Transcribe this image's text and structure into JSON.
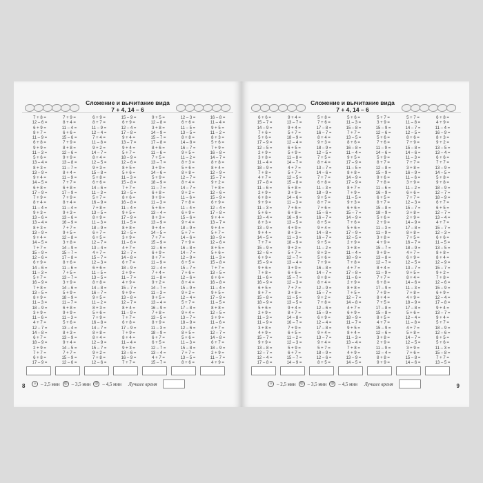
{
  "title": "Сложение и вычитание вида",
  "subtitle": "7 + 4, 14 – 6",
  "footer": {
    "face_good": "☺",
    "time_good": "– 2,5 мин",
    "face_mid": "☹",
    "time_mid": "– 3,5 мин",
    "face_bad": "☹",
    "time_bad": "– 4,5 мин",
    "best_time_label": "Лучшее время"
  },
  "left_page": {
    "page_number": "8",
    "columns": [
      [
        "7 + 8 =",
        "12 – 6 =",
        "6 + 9 =",
        "8 + 7 =",
        "11 – 9 =",
        "6 + 8 =",
        "9 + 9 =",
        "11 – 3 =",
        "5 + 6 =",
        "13 – 4 =",
        "8 + 3 =",
        "13 – 9 =",
        "9 + 4 =",
        "14 – 5 =",
        "6 + 8 =",
        "17 – 9 =",
        "7 + 9 =",
        "8 + 4 =",
        "11 – 4 =",
        "9 + 3 =",
        "13 – 6 =",
        "13 – 4 =",
        "8 + 3 =",
        "13 – 9 =",
        "9 + 4 =",
        "14 – 5 =",
        "7 + 7 =",
        "15 – 9 =",
        "12 – 6 =",
        "6 + 9 =",
        "14 – 6 =",
        "11 – 3 =",
        "5 + 7 =",
        "16 – 9 =",
        "7 + 8 =",
        "13 – 5 =",
        "8 + 9 =",
        "11 – 3 =",
        "18 – 9 =",
        "3 + 9 =",
        "11 – 6 =",
        "4 + 7 =",
        "12 – 7 =",
        "14 – 8 =",
        "6 + 7 =",
        "18 – 9 =",
        "2 + 9 =",
        "7 + 7 =",
        "6 + 8 =",
        "17 – 9 ="
      ],
      [
        "7 + 9 =",
        "8 + 4 =",
        "11 – 4 =",
        "6 + 6 =",
        "15 – 6 =",
        "7 + 9 =",
        "8 + 8 =",
        "12 – 6 =",
        "9 + 9 =",
        "13 – 8 =",
        "11 – 7 =",
        "8 + 4 =",
        "11 – 9 =",
        "7 + 7 =",
        "6 + 8 =",
        "17 – 9 =",
        "7 + 9 =",
        "8 + 4 =",
        "11 – 4 =",
        "9 + 3 =",
        "13 – 6 =",
        "16 – 9 =",
        "7 + 7 =",
        "9 + 5 =",
        "12 – 8 =",
        "3 + 8 =",
        "14 – 9 =",
        "15 – 7 =",
        "17 – 8 =",
        "8 + 6 =",
        "11 – 6 =",
        "7 + 5 =",
        "13 – 7 =",
        "3 + 9 =",
        "14 – 6 =",
        "5 + 9 =",
        "18 – 9 =",
        "11 – 7 =",
        "6 + 8 =",
        "9 + 9 =",
        "11 – 3 =",
        "5 + 6 =",
        "13 – 4 =",
        "8 + 3 =",
        "13 – 9 =",
        "9 + 4 =",
        "14 – 5 =",
        "7 + 7 =",
        "15 – 9 =",
        "12 – 6 ="
      ],
      [
        "6 + 9 =",
        "8 + 7 =",
        "11 – 9 =",
        "12 – 4 =",
        "7 + 4 =",
        "11 – 8 =",
        "9 + 2 =",
        "14 – 7 =",
        "8 + 4 =",
        "12 – 5 =",
        "9 + 3 =",
        "15 – 8 =",
        "5 + 8 =",
        "6 + 6 =",
        "14 – 6 =",
        "11 – 3 =",
        "5 + 7 =",
        "16 – 9 =",
        "7 + 8 =",
        "13 – 5 =",
        "8 + 9 =",
        "11 – 3 =",
        "18 – 9 =",
        "6 + 7 =",
        "6 + 5 =",
        "12 – 7 =",
        "13 – 4 =",
        "4 + 7 =",
        "15 – 7 =",
        "12 – 3 =",
        "6 + 6 =",
        "11 – 5 =",
        "13 – 5 =",
        "8 + 8 =",
        "14 – 8 =",
        "16 – 7 =",
        "9 + 5 =",
        "11 – 2 =",
        "8 + 3 =",
        "5 + 6 =",
        "7 + 9 =",
        "16 – 8 =",
        "14 – 7 =",
        "8 + 8 =",
        "8 + 4 =",
        "12 – 9 =",
        "15 – 7 =",
        "9 + 2 =",
        "7 + 8 =",
        "12 – 6 ="
      ],
      [
        "15 – 9 =",
        "6 + 9 =",
        "12 – 4 =",
        "17 – 8 =",
        "9 + 4 =",
        "13 – 7 =",
        "9 + 4 =",
        "5 + 7 =",
        "18 – 9 =",
        "12 – 6 =",
        "8 + 5 =",
        "5 + 6 =",
        "11 – 3 =",
        "15 – 8 =",
        "7 + 7 =",
        "13 – 5 =",
        "8 + 6 =",
        "16 – 8 =",
        "11 – 4 =",
        "9 + 5 =",
        "17 – 9 =",
        "11 – 5 =",
        "8 + 8 =",
        "12 – 5 =",
        "3 + 9 =",
        "11 – 6 =",
        "4 + 7 =",
        "12 – 7 =",
        "14 – 8 =",
        "6 + 7 =",
        "18 – 9 =",
        "2 + 9 =",
        "11 – 7 =",
        "4 + 9 =",
        "15 – 7 =",
        "9 + 9 =",
        "13 – 8 =",
        "12 – 7 =",
        "8 + 4 =",
        "11 – 9 =",
        "7 + 7 =",
        "6 + 8 =",
        "17 – 9 =",
        "7 + 9 =",
        "8 + 4 =",
        "11 – 4 =",
        "9 + 3 =",
        "13 – 6 =",
        "16 – 9 =",
        "7 + 7 ="
      ],
      [
        "9 + 5 =",
        "12 – 8 =",
        "3 + 8 =",
        "14 – 9 =",
        "15 – 7 =",
        "17 – 8 =",
        "8 + 6 =",
        "11 – 6 =",
        "7 + 5 =",
        "13 – 7 =",
        "3 + 9 =",
        "14 – 6 =",
        "5 + 9 =",
        "18 – 9 =",
        "11 – 7 =",
        "6 + 8 =",
        "9 + 9 =",
        "11 – 3 =",
        "5 + 6 =",
        "13 – 4 =",
        "8 + 3 =",
        "13 – 9 =",
        "9 + 4 =",
        "14 – 5 =",
        "7 + 7 =",
        "15 – 9 =",
        "12 – 6 =",
        "6 + 9 =",
        "8 + 7 =",
        "11 – 9 =",
        "12 – 4 =",
        "7 + 4 =",
        "11 – 8 =",
        "9 + 2 =",
        "14 – 7 =",
        "11 – 3 =",
        "9 + 5 =",
        "13 – 4 =",
        "16 – 9 =",
        "7 + 8 =",
        "13 – 5 =",
        "8 + 9 =",
        "11 – 3 =",
        "18 – 9 =",
        "6 + 7 =",
        "6 + 5 =",
        "12 – 7 =",
        "13 – 4 =",
        "4 + 7 =",
        "15 – 7 ="
      ],
      [
        "12 – 3 =",
        "6 + 6 =",
        "11 – 5 =",
        "13 – 5 =",
        "8 + 8 =",
        "14 – 8 =",
        "16 – 7 =",
        "9 + 5 =",
        "11 – 2 =",
        "8 + 3 =",
        "5 + 6 =",
        "8 + 8 =",
        "12 – 7 =",
        "8 + 4 =",
        "14 – 7 =",
        "9 + 2 =",
        "11 – 6 =",
        "7 + 8 =",
        "11 – 4 =",
        "6 + 9 =",
        "15 – 6 =",
        "9 + 4 =",
        "18 – 9 =",
        "5 + 7 =",
        "14 – 6 =",
        "7 + 9 =",
        "16 – 8 =",
        "14 – 7 =",
        "12 – 9 =",
        "6 + 5 =",
        "15 – 7 =",
        "7 + 6 =",
        "12 – 6 =",
        "8 + 4 =",
        "15 – 9 =",
        "9 + 2 =",
        "12 – 4 =",
        "5 + 7 =",
        "17 – 8 =",
        "9 + 4 =",
        "13 – 7 =",
        "18 – 9 =",
        "12 – 6 =",
        "8 + 5 =",
        "5 + 6 =",
        "11 – 3 =",
        "15 – 8 =",
        "7 + 7 =",
        "13 – 5 =",
        "8 + 6 ="
      ],
      [
        "16 – 8 =",
        "11 – 4 =",
        "9 + 5 =",
        "11 – 2 =",
        "8 + 3 =",
        "5 + 6 =",
        "7 + 9 =",
        "16 – 8 =",
        "14 – 7 =",
        "8 + 8 =",
        "8 + 4 =",
        "12 – 9 =",
        "15 – 7 =",
        "9 + 2 =",
        "7 + 8 =",
        "12 – 6 =",
        "15 – 9 =",
        "6 + 9 =",
        "12 – 4 =",
        "17 – 8 =",
        "9 + 4 =",
        "13 – 7 =",
        "9 + 4 =",
        "5 + 7 =",
        "18 – 9 =",
        "12 – 6 =",
        "8 + 5 =",
        "5 + 6 =",
        "11 – 3 =",
        "15 – 8 =",
        "7 + 7 =",
        "13 – 5 =",
        "8 + 6 =",
        "16 – 8 =",
        "11 – 4 =",
        "9 + 5 =",
        "17 – 9 =",
        "11 – 5 =",
        "8 + 8 =",
        "12 – 5 =",
        "3 + 9 =",
        "11 – 6 =",
        "4 + 7 =",
        "12 – 7 =",
        "14 – 8 =",
        "6 + 7 =",
        "18 – 9 =",
        "2 + 9 =",
        "11 – 7 =",
        "4 + 9 ="
      ]
    ]
  },
  "right_page": {
    "page_number": "9",
    "columns": [
      [
        "6 + 6 =",
        "15 – 7 =",
        "14 – 9 =",
        "7 + 6 =",
        "5 + 6 =",
        "17 – 9 =",
        "12 – 5 =",
        "2 + 9 =",
        "3 + 8 =",
        "11 – 4 =",
        "18 – 9 =",
        "7 + 8 =",
        "4 + 7 =",
        "17 – 8 =",
        "11 – 6 =",
        "2 + 9 =",
        "6 + 8 =",
        "9 + 9 =",
        "11 – 3 =",
        "5 + 6 =",
        "13 – 4 =",
        "8 + 3 =",
        "13 – 9 =",
        "9 + 4 =",
        "14 – 5 =",
        "7 + 7 =",
        "15 – 9 =",
        "12 – 6 =",
        "6 + 9 =",
        "15 – 9 =",
        "9 + 6 =",
        "7 + 8 =",
        "11 – 6 =",
        "16 – 9 =",
        "6 + 5 =",
        "8 + 7 =",
        "15 – 8 =",
        "18 – 9 =",
        "5 + 6 =",
        "2 + 9 =",
        "11 – 3 =",
        "11 – 9 =",
        "3 + 8 =",
        "4 + 9 =",
        "15 – 7 =",
        "9 + 9 =",
        "13 – 8 =",
        "12 – 7 =",
        "12 – 4 =",
        "17 – 8 ="
      ],
      [
        "9 + 4 =",
        "13 – 7 =",
        "9 + 4 =",
        "5 + 7 =",
        "18 – 9 =",
        "12 – 4 =",
        "6 + 5 =",
        "5 + 9 =",
        "11 – 8 =",
        "14 – 7 =",
        "4 + 7 =",
        "5 + 7 =",
        "12 – 5 =",
        "15 – 8 =",
        "5 + 8 =",
        "3 + 9 =",
        "14 – 6 =",
        "11 – 3 =",
        "7 + 6 =",
        "6 + 8 =",
        "16 – 9 =",
        "13 – 5 =",
        "4 + 9 =",
        "8 + 3 =",
        "11 – 3 =",
        "18 – 9 =",
        "9 + 2 =",
        "5 + 7 =",
        "12 – 7 =",
        "13 – 4 =",
        "3 + 9 =",
        "6 + 6 =",
        "15 – 7 =",
        "12 – 3 =",
        "7 + 7 =",
        "3 + 8 =",
        "11 – 5 =",
        "13 – 5 =",
        "9 + 4 =",
        "8 + 7 =",
        "14 – 8 =",
        "16 – 7 =",
        "7 + 9 =",
        "6 + 5 =",
        "11 – 2 =",
        "12 – 3 =",
        "5 + 9 =",
        "6 + 7 =",
        "15 – 7 =",
        "14 – 9 ="
      ],
      [
        "5 + 8 =",
        "7 + 6 =",
        "17 – 8 =",
        "16 – 7 =",
        "8 + 4 =",
        "9 + 3 =",
        "18 – 9 =",
        "12 – 5 =",
        "7 + 5 =",
        "8 + 4 =",
        "13 – 7 =",
        "14 – 6 =",
        "7 + 7 =",
        "6 + 8 =",
        "11 – 3 =",
        "18 – 9 =",
        "9 + 5 =",
        "8 + 7 =",
        "7 + 6 =",
        "15 – 6 =",
        "16 – 7 =",
        "8 + 5 =",
        "9 + 4 =",
        "14 – 8 =",
        "16 – 7 =",
        "9 + 5 =",
        "11 – 2 =",
        "8 + 3 =",
        "5 + 6 =",
        "7 + 9 =",
        "16 – 8 =",
        "14 – 7 =",
        "8 + 8 =",
        "8 + 4 =",
        "12 – 9 =",
        "15 – 7 =",
        "9 + 2 =",
        "7 + 8 =",
        "12 – 6 =",
        "15 – 9 =",
        "6 + 9 =",
        "12 – 4 =",
        "17 – 8 =",
        "9 + 4 =",
        "13 – 7 =",
        "9 + 4 =",
        "5 + 7 =",
        "18 – 9 =",
        "12 – 6 =",
        "8 + 5 ="
      ],
      [
        "5 + 6 =",
        "11 – 3 =",
        "15 – 8 =",
        "7 + 7 =",
        "13 – 5 =",
        "8 + 6 =",
        "16 – 8 =",
        "11 – 4 =",
        "9 + 5 =",
        "17 – 9 =",
        "11 – 5 =",
        "8 + 8 =",
        "14 – 9 =",
        "17 – 9 =",
        "8 + 7 =",
        "7 + 9 =",
        "11 – 5 =",
        "9 + 3 =",
        "6 + 6 =",
        "15 – 7 =",
        "14 – 9 =",
        "7 + 6 =",
        "5 + 6 =",
        "17 – 9 =",
        "12 – 5 =",
        "2 + 9 =",
        "3 + 8 =",
        "11 – 4 =",
        "18 – 9 =",
        "7 + 8 =",
        "4 + 7 =",
        "17 – 8 =",
        "11 – 6 =",
        "2 + 9 =",
        "8 + 8 =",
        "7 + 5 =",
        "12 – 7 =",
        "14 – 8 =",
        "4 + 7 =",
        "6 + 9 =",
        "18 – 9 =",
        "11 – 7 =",
        "9 + 5 =",
        "8 + 4 =",
        "11 – 3 =",
        "13 – 4 =",
        "7 + 8 =",
        "4 + 9 =",
        "13 – 9 =",
        "14 – 5 ="
      ],
      [
        "5 + 7 =",
        "3 + 9 =",
        "15 – 9 =",
        "12 – 6 =",
        "5 + 6 =",
        "7 + 6 =",
        "11 – 9 =",
        "14 – 6 =",
        "5 + 9 =",
        "8 + 7 =",
        "12 – 8 =",
        "15 – 9 =",
        "9 + 6 =",
        "7 + 8 =",
        "11 – 6 =",
        "16 – 9 =",
        "6 + 5 =",
        "8 + 7 =",
        "15 – 8 =",
        "18 – 9 =",
        "5 + 6 =",
        "2 + 9 =",
        "11 – 3 =",
        "11 – 9 =",
        "3 + 8 =",
        "4 + 9 =",
        "15 – 7 =",
        "9 + 9 =",
        "13 – 8 =",
        "12 – 7 =",
        "8 + 4 =",
        "11 – 9 =",
        "7 + 7 =",
        "6 + 8 =",
        "17 – 9 =",
        "7 + 9 =",
        "8 + 4 =",
        "7 + 5 =",
        "17 – 8 =",
        "15 – 8 =",
        "8 + 5 =",
        "4 + 7 =",
        "15 – 9 =",
        "12 – 6 =",
        "3 + 8 =",
        "2 + 9 =",
        "11 – 9 =",
        "12 – 4 =",
        "8 + 8 =",
        "9 + 9 ="
      ],
      [
        "5 + 7 =",
        "11 – 8 =",
        "14 – 7 =",
        "12 – 5 =",
        "8 + 6 =",
        "7 + 9 =",
        "15 – 8 =",
        "14 – 6 =",
        "11 – 3 =",
        "7 + 7 =",
        "3 + 8 =",
        "16 – 9 =",
        "11 – 6 =",
        "3 + 9 =",
        "11 – 2 =",
        "6 + 6 =",
        "7 + 7 =",
        "12 – 3 =",
        "15 – 7 =",
        "3 + 8 =",
        "2 + 9 =",
        "14 – 9 =",
        "17 – 8 =",
        "8 + 8 =",
        "7 + 5 =",
        "16 – 7 =",
        "18 – 9 =",
        "4 + 7 =",
        "6 + 9 =",
        "12 – 5 =",
        "13 – 7 =",
        "9 + 5 =",
        "8 + 4 =",
        "14 – 6 =",
        "11 – 3 =",
        "7 + 8 =",
        "4 + 9 =",
        "18 – 9 =",
        "17 – 8 =",
        "5 + 6 =",
        "12 – 4 =",
        "11 – 8 =",
        "4 + 7 =",
        "5 + 8 =",
        "14 – 7 =",
        "12 – 5 =",
        "3 + 9 =",
        "7 + 6 =",
        "15 – 8 =",
        "14 – 6 ="
      ],
      [
        "6 + 8 =",
        "4 + 9 =",
        "11 – 4 =",
        "16 – 9 =",
        "8 + 3 =",
        "9 + 2 =",
        "13 – 5 =",
        "13 – 4 =",
        "6 + 6 =",
        "7 + 7 =",
        "13 – 9 =",
        "14 – 5 =",
        "5 + 8 =",
        "9 + 8 =",
        "18 – 9 =",
        "12 – 7 =",
        "18 – 9 =",
        "6 + 7 =",
        "6 + 5 =",
        "12 – 7 =",
        "13 – 4 =",
        "4 + 7 =",
        "15 – 7 =",
        "12 – 3 =",
        "6 + 6 =",
        "11 – 5 =",
        "13 – 5 =",
        "8 + 8 =",
        "8 + 4 =",
        "12 – 9 =",
        "15 – 7 =",
        "9 + 2 =",
        "7 + 8 =",
        "12 – 6 =",
        "15 – 9 =",
        "6 + 9 =",
        "12 – 4 =",
        "17 – 8 =",
        "9 + 4 =",
        "13 – 7 =",
        "9 + 4 =",
        "5 + 7 =",
        "18 – 9 =",
        "12 – 6 =",
        "8 + 5 =",
        "5 + 6 =",
        "11 – 3 =",
        "15 – 8 =",
        "7 + 7 =",
        "13 – 5 ="
      ]
    ]
  }
}
